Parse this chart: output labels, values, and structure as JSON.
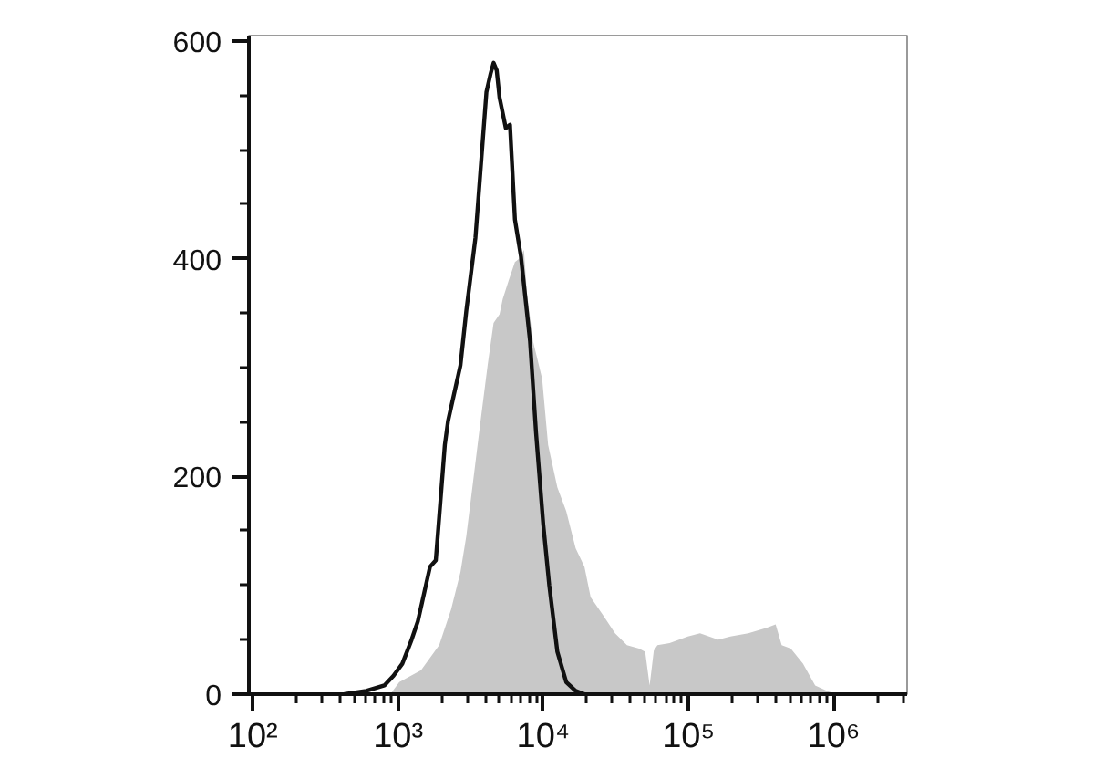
{
  "chart_data": {
    "type": "area",
    "log": "x",
    "xlim": [
      94,
      3200000
    ],
    "ylim": [
      0,
      605
    ],
    "xticks": [
      {
        "value": 100,
        "label": "10²"
      },
      {
        "value": 200,
        "label": null
      },
      {
        "value": 300,
        "label": null
      },
      {
        "value": 400,
        "label": null
      },
      {
        "value": 500,
        "label": null
      },
      {
        "value": 600,
        "label": null
      },
      {
        "value": 700,
        "label": null
      },
      {
        "value": 800,
        "label": null
      },
      {
        "value": 900,
        "label": null
      },
      {
        "value": 1000,
        "label": "10³"
      },
      {
        "value": 2000,
        "label": null
      },
      {
        "value": 3000,
        "label": null
      },
      {
        "value": 4000,
        "label": null
      },
      {
        "value": 5000,
        "label": null
      },
      {
        "value": 6000,
        "label": null
      },
      {
        "value": 7000,
        "label": null
      },
      {
        "value": 8000,
        "label": null
      },
      {
        "value": 9000,
        "label": null
      },
      {
        "value": 10000,
        "label": "10⁴"
      },
      {
        "value": 20000,
        "label": null
      },
      {
        "value": 30000,
        "label": null
      },
      {
        "value": 40000,
        "label": null
      },
      {
        "value": 50000,
        "label": null
      },
      {
        "value": 60000,
        "label": null
      },
      {
        "value": 70000,
        "label": null
      },
      {
        "value": 80000,
        "label": null
      },
      {
        "value": 90000,
        "label": null
      },
      {
        "value": 100000,
        "label": "10⁵"
      },
      {
        "value": 200000,
        "label": null
      },
      {
        "value": 300000,
        "label": null
      },
      {
        "value": 400000,
        "label": null
      },
      {
        "value": 500000,
        "label": null
      },
      {
        "value": 600000,
        "label": null
      },
      {
        "value": 700000,
        "label": null
      },
      {
        "value": 800000,
        "label": null
      },
      {
        "value": 900000,
        "label": null
      },
      {
        "value": 1000000,
        "label": "10⁶"
      },
      {
        "value": 2000000,
        "label": null
      },
      {
        "value": 3000000,
        "label": null
      }
    ],
    "yticks": [
      0,
      {
        "value": 50,
        "label": null
      },
      {
        "value": 100,
        "label": null
      },
      {
        "value": 150,
        "label": null
      },
      200,
      {
        "value": 250,
        "label": null
      },
      {
        "value": 300,
        "label": null
      },
      {
        "value": 350,
        "label": null
      },
      400,
      {
        "value": 450,
        "label": null
      },
      {
        "value": 500,
        "label": null
      },
      {
        "value": 550,
        "label": null
      },
      600
    ],
    "series": [
      {
        "color": "#c8c8c8",
        "x": [
          885,
          1020,
          1440,
          1920,
          2320,
          2690,
          2950,
          3250,
          3750,
          4140,
          4550,
          5000,
          5260,
          5780,
          6380,
          6810,
          7360,
          7710,
          8510,
          9820,
          10800,
          12500,
          14400,
          16700,
          19200,
          21200,
          25700,
          31200,
          37700,
          45700,
          50300,
          54000,
          57700,
          61100,
          74100,
          98900,
          120000,
          160000,
          194000,
          258000,
          345000,
          398000,
          438000,
          506000,
          614000,
          745000,
          901000,
          1040000
        ],
        "values": [
          0,
          11,
          22,
          45,
          78,
          112,
          145,
          190,
          257,
          302,
          341,
          349,
          363,
          380,
          397,
          400,
          408,
          369,
          324,
          290,
          229,
          190,
          168,
          134,
          117,
          89,
          73,
          56,
          45,
          42,
          39,
          8,
          40,
          45,
          47,
          53,
          56,
          50,
          53,
          56,
          61,
          64,
          45,
          42,
          28,
          8,
          3,
          0
        ]
      },
      {
        "type": "line",
        "color": "#111111",
        "x": [
          427,
          604,
          805,
          931,
          1070,
          1240,
          1370,
          1660,
          1820,
          2100,
          2210,
          2690,
          2950,
          3410,
          3750,
          4060,
          4340,
          4550,
          4780,
          5000,
          5520,
          5900,
          6380,
          7020,
          8110,
          8920,
          10000,
          11000,
          12500,
          14400,
          16700,
          19200
        ],
        "values": [
          0,
          3,
          8,
          17,
          28,
          50,
          67,
          117,
          123,
          229,
          251,
          302,
          352,
          419,
          492,
          553,
          570,
          580,
          573,
          548,
          520,
          523,
          436,
          402,
          324,
          240,
          156,
          100,
          39,
          11,
          3,
          0
        ]
      }
    ]
  }
}
